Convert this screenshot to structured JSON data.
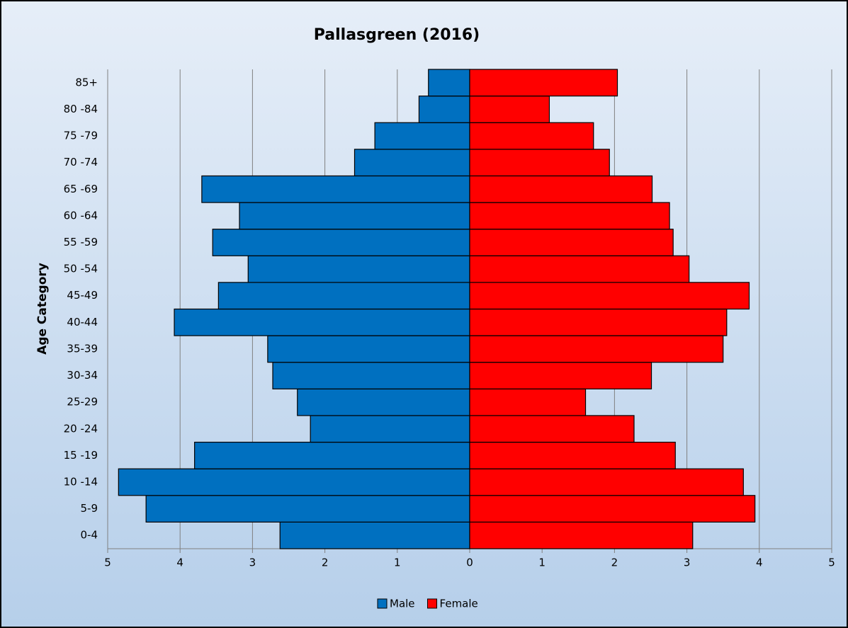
{
  "chart_data": {
    "type": "pyramid",
    "title": "Pallasgreen (2016)",
    "y_label": "Age Category",
    "categories": [
      "0-4",
      "5-9",
      "10 -14",
      "15 -19",
      "20 -24",
      "25-29",
      "30-34",
      "35-39",
      "40-44",
      "45-49",
      "50 -54",
      "55 -59",
      "60 -64",
      "65 -69",
      "70 -74",
      "75 -79",
      "80 -84",
      "85+"
    ],
    "series": [
      {
        "name": "Male",
        "color": "#0070c0",
        "values": [
          -2.62,
          -4.47,
          -4.85,
          -3.8,
          -2.2,
          -2.38,
          -2.72,
          -2.79,
          -4.08,
          -3.47,
          -3.06,
          -3.55,
          -3.18,
          -3.7,
          -1.59,
          -1.31,
          -0.7,
          -0.57
        ]
      },
      {
        "name": "Female",
        "color": "#ff0000",
        "values": [
          3.08,
          3.94,
          3.78,
          2.84,
          2.27,
          1.6,
          2.51,
          3.5,
          3.55,
          3.86,
          3.03,
          2.81,
          2.76,
          2.52,
          1.93,
          1.71,
          1.1,
          2.04
        ]
      }
    ],
    "xlim": [
      -5,
      5
    ],
    "xticks": [
      {
        "value": -5,
        "label": "5"
      },
      {
        "value": -4,
        "label": "4"
      },
      {
        "value": -3,
        "label": "3"
      },
      {
        "value": -2,
        "label": "2"
      },
      {
        "value": -1,
        "label": "1"
      },
      0,
      1,
      2,
      3,
      4,
      5
    ],
    "grid": true,
    "legend": "bottom"
  }
}
